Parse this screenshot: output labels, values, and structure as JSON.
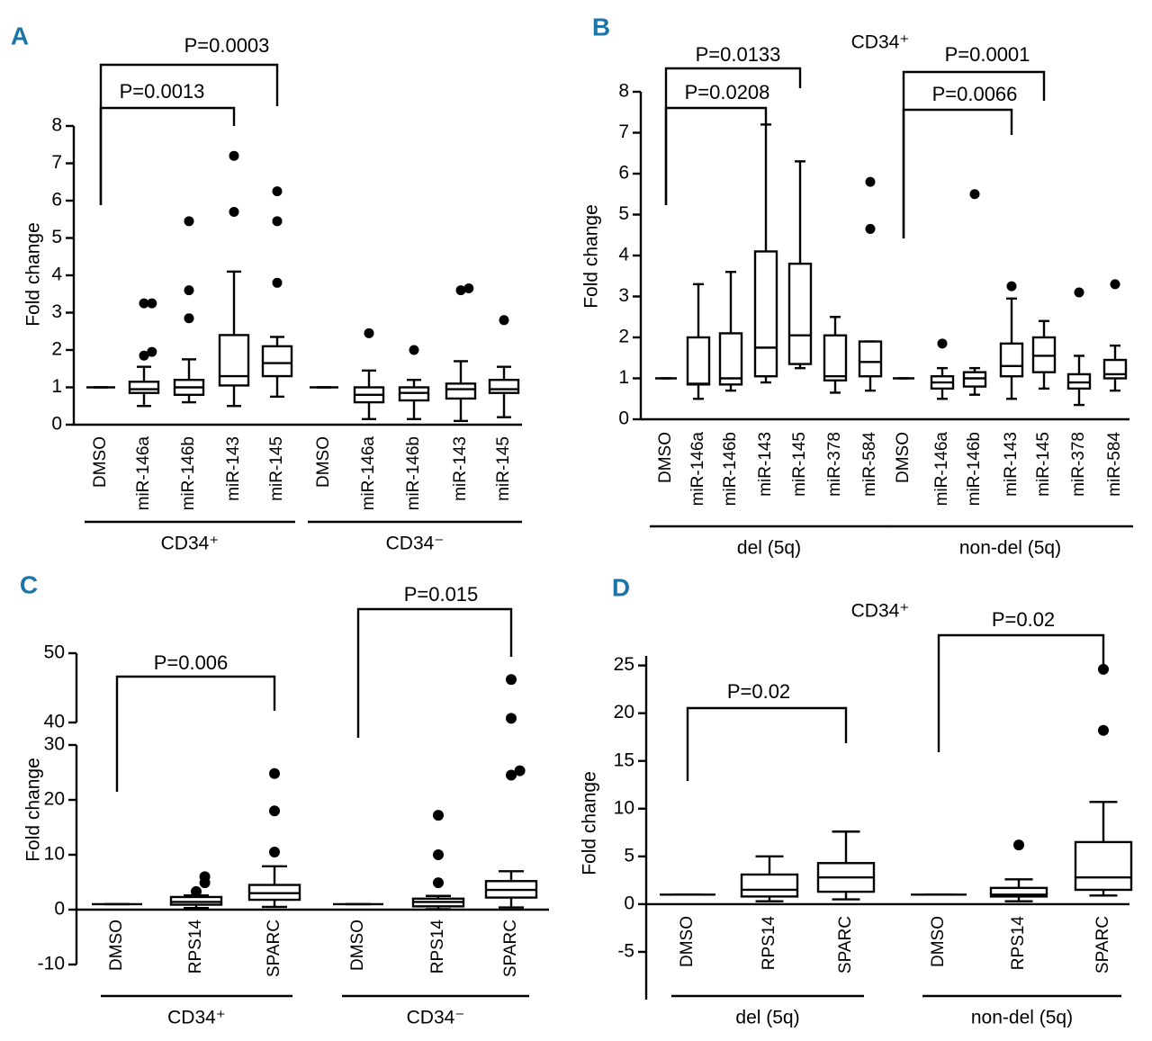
{
  "chart_data": [
    {
      "type": "box",
      "panel": "A",
      "y_label": "Fold change",
      "categories": [
        "DMSO",
        "miR-146a",
        "miR-146b",
        "miR-143",
        "miR-145",
        "DMSO",
        "miR-146a",
        "miR-146b",
        "miR-143",
        "miR-145"
      ],
      "groups": [
        "CD34⁺",
        "CD34⁻"
      ],
      "boxes": {
        "min": [
          1,
          0.5,
          0.6,
          0.5,
          0.75,
          1,
          0.15,
          0.15,
          0.1,
          0.2
        ],
        "q1": [
          1,
          0.85,
          0.8,
          1.05,
          1.3,
          1,
          0.6,
          0.65,
          0.7,
          0.85
        ],
        "median": [
          1,
          0.95,
          1.0,
          1.3,
          1.65,
          1,
          0.8,
          0.85,
          0.95,
          0.95
        ],
        "q3": [
          1,
          1.15,
          1.2,
          2.4,
          2.1,
          1,
          1.0,
          1.0,
          1.1,
          1.2
        ],
        "max": [
          1,
          1.55,
          1.75,
          4.1,
          2.35,
          1,
          1.45,
          1.2,
          1.7,
          1.55
        ]
      },
      "outliers": [
        [],
        [
          1.85,
          1.95,
          3.25,
          3.25
        ],
        [
          2.85,
          3.6,
          5.45
        ],
        [
          5.7,
          7.2
        ],
        [
          3.8,
          5.45,
          6.25
        ],
        [],
        [
          2.45
        ],
        [
          2.0
        ],
        [
          3.6,
          3.65
        ],
        [
          2.8
        ]
      ],
      "annotations": [
        "P=0.0003",
        "P=0.0013"
      ],
      "ylim": [
        0,
        8
      ],
      "yticks": [
        0,
        1,
        2,
        3,
        4,
        5,
        6,
        7,
        8
      ],
      "color": "#000000"
    },
    {
      "type": "box",
      "panel": "B",
      "title": "CD34⁺",
      "y_label": "Fold change",
      "categories": [
        "DMSO",
        "miR-146a",
        "miR-146b",
        "miR-143",
        "miR-145",
        "miR-378",
        "miR-584",
        "DMSO",
        "miR-146a",
        "miR-146b",
        "miR-143",
        "miR-145",
        "miR-378",
        "miR-584"
      ],
      "groups": [
        "del (5q)",
        "non-del (5q)"
      ],
      "boxes": {
        "min": [
          1,
          0.5,
          0.7,
          0.9,
          1.25,
          0.65,
          0.7,
          1,
          0.5,
          0.6,
          0.5,
          0.75,
          0.35,
          0.7
        ],
        "q1": [
          1,
          0.85,
          0.85,
          1.05,
          1.35,
          0.95,
          1.05,
          1,
          0.75,
          0.8,
          1.05,
          1.15,
          0.75,
          1.0
        ],
        "median": [
          1,
          0.87,
          1.0,
          1.75,
          2.05,
          1.05,
          1.4,
          1,
          0.9,
          1.0,
          1.3,
          1.55,
          0.9,
          1.1
        ],
        "q3": [
          1,
          2.0,
          2.1,
          4.1,
          3.8,
          2.05,
          1.9,
          1,
          1.05,
          1.15,
          1.85,
          2.0,
          1.1,
          1.45
        ],
        "max": [
          1,
          3.3,
          3.6,
          7.2,
          6.3,
          2.5,
          1.9,
          1,
          1.25,
          1.25,
          2.95,
          2.4,
          1.55,
          1.8
        ]
      },
      "outliers": [
        [],
        [],
        [],
        [],
        [],
        [],
        [
          4.65,
          5.8
        ],
        [],
        [
          1.85
        ],
        [
          5.5
        ],
        [
          3.25
        ],
        [],
        [
          3.1
        ],
        [
          3.3
        ]
      ],
      "annotations": [
        "P=0.0133",
        "P=0.0208",
        "P=0.0001",
        "P=0.0066"
      ],
      "ylim": [
        0,
        8
      ],
      "yticks": [
        0,
        1,
        2,
        3,
        4,
        5,
        6,
        7,
        8
      ],
      "color": "#000000"
    },
    {
      "type": "box",
      "panel": "C",
      "y_label": "Fold change",
      "categories": [
        "DMSO",
        "RPS14",
        "SPARC",
        "DMSO",
        "RPS14",
        "SPARC"
      ],
      "groups": [
        "CD34⁺",
        "CD34⁻"
      ],
      "boxes": {
        "min": [
          1,
          0.3,
          0.5,
          1,
          0.1,
          0.4
        ],
        "q1": [
          1,
          0.9,
          1.8,
          1,
          0.6,
          2.2
        ],
        "median": [
          1,
          1.4,
          3.0,
          1,
          1.4,
          3.6
        ],
        "q3": [
          1,
          2.3,
          4.5,
          1,
          2.0,
          5.2
        ],
        "max": [
          1,
          2.6,
          7.9,
          1,
          2.5,
          7.0
        ]
      },
      "outliers": [
        [],
        [
          3.3,
          4.9,
          6.0
        ],
        [
          10.5,
          18,
          24.8
        ],
        [],
        [
          4.9,
          10,
          17.2
        ],
        [
          24.5,
          25.3,
          40.6,
          46.2
        ]
      ],
      "annotations": [
        "P=0.006",
        "P=0.015"
      ],
      "ylim": [
        -10,
        50
      ],
      "ybreak": [
        30,
        40
      ],
      "yticks": [
        -10,
        0,
        10,
        20,
        30,
        40,
        50
      ],
      "color": "#000000"
    },
    {
      "type": "box",
      "panel": "D",
      "title": "CD34⁺",
      "y_label": "Fold change",
      "categories": [
        "DMSO",
        "RPS14",
        "SPARC",
        "DMSO",
        "RPS14",
        "SPARC"
      ],
      "groups": [
        "del (5q)",
        "non-del (5q)"
      ],
      "boxes": {
        "min": [
          1,
          0.3,
          0.5,
          1,
          0.3,
          0.9
        ],
        "q1": [
          1,
          0.8,
          1.3,
          1,
          0.8,
          1.5
        ],
        "median": [
          1,
          1.5,
          2.8,
          1,
          1.0,
          2.8
        ],
        "q3": [
          1,
          3.1,
          4.3,
          1,
          1.7,
          6.5
        ],
        "max": [
          1,
          5.0,
          7.6,
          1,
          2.6,
          10.7
        ]
      },
      "outliers": [
        [],
        [],
        [],
        [],
        [
          6.2
        ],
        [
          18.2,
          24.6
        ]
      ],
      "annotations": [
        "P=0.02",
        "P=0.02"
      ],
      "ylim": [
        -10,
        26
      ],
      "yticks": [
        -5,
        0,
        5,
        10,
        15,
        20,
        25
      ],
      "color": "#000000"
    }
  ]
}
